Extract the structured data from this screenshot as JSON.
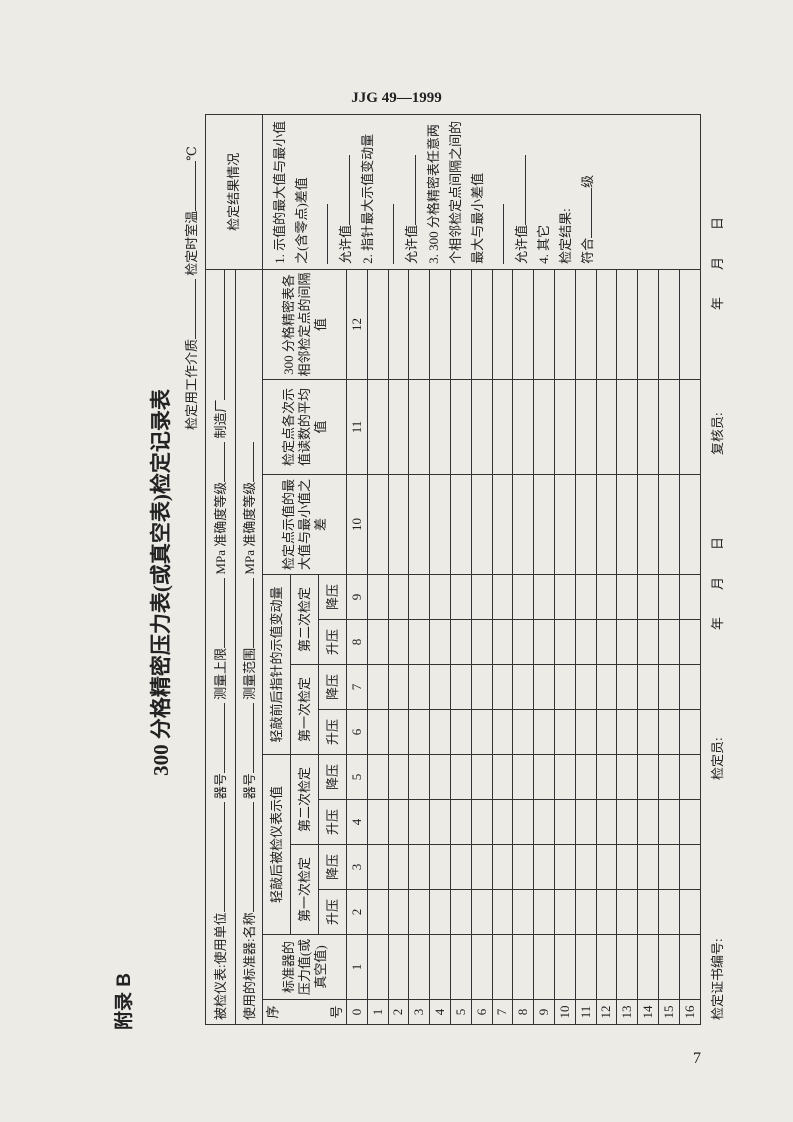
{
  "header": {
    "standard": "JJG 49—1999",
    "page_number": "7"
  },
  "appendix": "附录 B",
  "title": "300 分格精密压力表(或真空表)检定记录表",
  "info": {
    "line1": [
      "被检仪表:使用单位",
      "器号",
      "测量上限",
      "MPa 准确度等级",
      "制造厂"
    ],
    "line2": [
      "使用的标准器:名称",
      "器号",
      "测量范围",
      "MPa 准确度等级"
    ],
    "line3": [
      "检定用工作介质",
      "检定时室温",
      "℃"
    ]
  },
  "table": {
    "seq_header": [
      "序",
      "号"
    ],
    "standard_header": "标准器的压力值(或真空值)",
    "group_headers": [
      "轻敲后被检仪表示值",
      "轻敲前后指针的示值变动量"
    ],
    "sub_headers": [
      "第一次检定",
      "第二次检定",
      "第一次检定",
      "第二次检定"
    ],
    "direction_headers": [
      "升压",
      "降压",
      "升压",
      "降压",
      "升压",
      "降压",
      "升压",
      "降压"
    ],
    "range_header": "检定点示值的最大值与最小值之差",
    "average_header": "检定点各次示值读数的平均值",
    "interval_header": "300 分格精密表各相邻检定点的间隔值",
    "result_header": "检定结果情况",
    "column_numbers": [
      1,
      2,
      3,
      4,
      5,
      6,
      7,
      8,
      9,
      10,
      11,
      12
    ],
    "row_numbers": [
      0,
      1,
      2,
      3,
      4,
      5,
      6,
      7,
      8,
      9,
      10,
      11,
      12,
      13,
      14,
      15,
      16
    ]
  },
  "results": {
    "items": [
      {
        "label": "1. 示值的最大值与最小值之(含零点)差值",
        "allow": "允许值"
      },
      {
        "label": "2. 指针最大示值变动量",
        "allow": "允许值"
      },
      {
        "label": "3. 300 分格精密表任意两个相邻检定点间隔之间的最大与最小差值",
        "allow": "允许值"
      }
    ],
    "other": "4. 其它",
    "conclusion": "检定结果:",
    "grade": [
      "符合",
      "级"
    ]
  },
  "footer": {
    "certificate_no": "检定证书编号:",
    "verifier": "检定员:",
    "verifier_date": [
      "年",
      "月",
      "日"
    ],
    "reviewer": "复核员:",
    "reviewer_date": [
      "年",
      "月",
      "日"
    ]
  }
}
